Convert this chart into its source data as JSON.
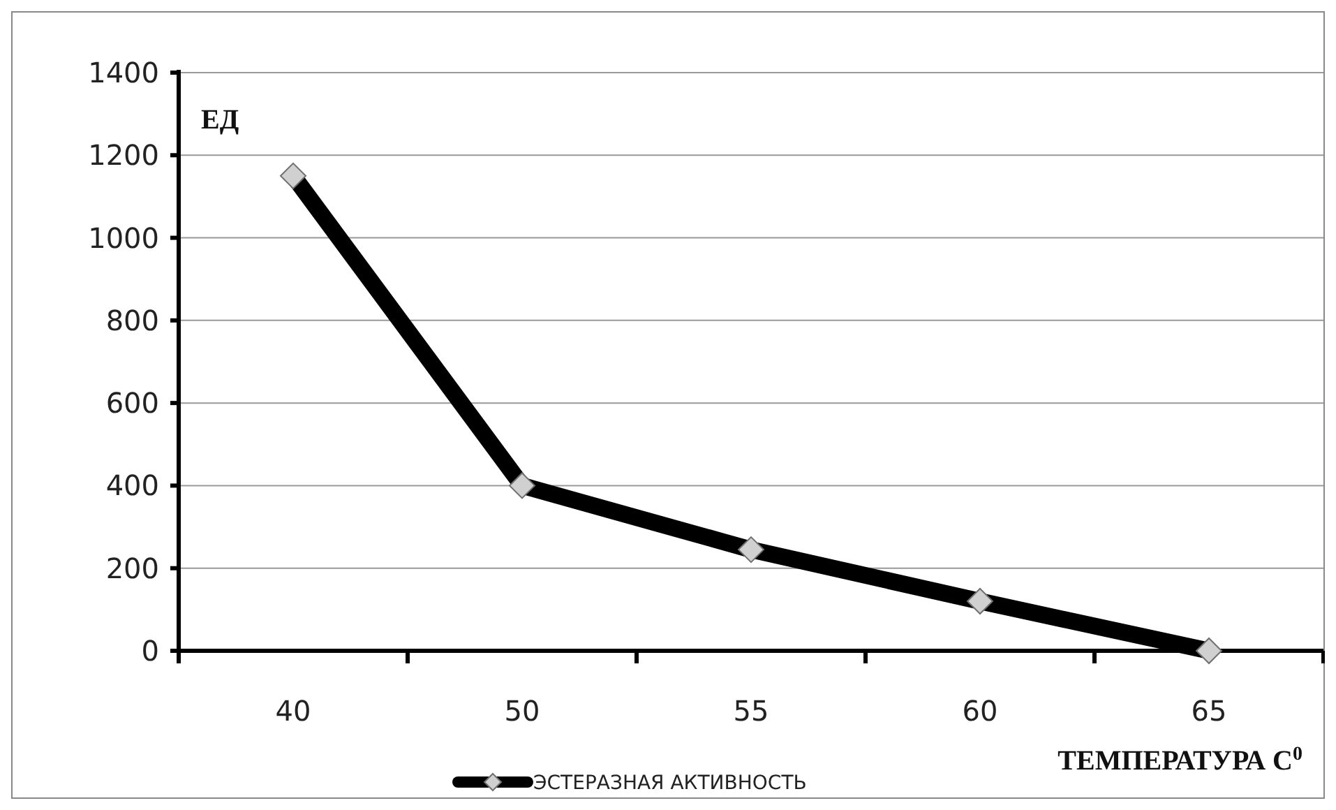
{
  "chart_data": {
    "type": "line",
    "ylabel": "ЕД",
    "xlabel": "ТЕМПЕРАТУРА  С$^{0}$",
    "categories": [
      "40",
      "50",
      "55",
      "60",
      "65"
    ],
    "series": [
      {
        "name": "ЭСТЕРАЗНАЯ  АКТИВНОСТЬ",
        "color": "#000000",
        "values": [
          1150,
          400,
          245,
          120,
          0
        ]
      }
    ],
    "ylim": [
      0,
      1400
    ],
    "yticks": [
      0,
      200,
      400,
      600,
      800,
      1000,
      1200,
      1400
    ],
    "grid": "y",
    "legend": "bottom",
    "marker": "diamond",
    "line_style": "solid"
  }
}
